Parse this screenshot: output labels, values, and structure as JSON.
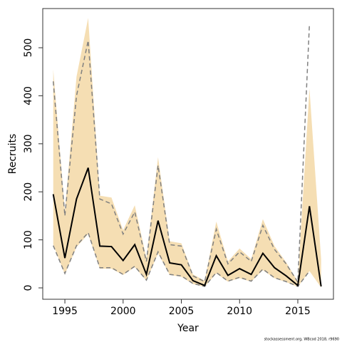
{
  "chart_data": {
    "type": "line",
    "x_label": "Year",
    "y_label": "Recruits",
    "footnote": "stockassessment.org, WBcod 2018, r9690",
    "x": [
      1994,
      1995,
      1996,
      1997,
      1998,
      1999,
      2000,
      2001,
      2002,
      2003,
      2004,
      2005,
      2006,
      2007,
      2008,
      2009,
      2010,
      2011,
      2012,
      2013,
      2014,
      2015,
      2016,
      2017
    ],
    "band": {
      "color": "#f5deb3",
      "upper": [
        455,
        160,
        440,
        562,
        192,
        188,
        120,
        172,
        62,
        272,
        97,
        93,
        28,
        15,
        138,
        55,
        82,
        60,
        143,
        87,
        53,
        13,
        415,
        60
      ],
      "lower": [
        90,
        28,
        85,
        112,
        40,
        40,
        27,
        43,
        15,
        72,
        27,
        23,
        8,
        2,
        30,
        13,
        20,
        13,
        37,
        20,
        12,
        2,
        35,
        1
      ]
    },
    "series": [
      {
        "color": "#808080",
        "dashed": true,
        "values": [
          430,
          150,
          400,
          515,
          185,
          175,
          112,
          158,
          55,
          255,
          90,
          87,
          25,
          13,
          122,
          50,
          75,
          55,
          130,
          80,
          50,
          12,
          550,
          null
        ]
      },
      {
        "color": "#808080",
        "dashed": true,
        "values": [
          88,
          30,
          88,
          115,
          42,
          42,
          28,
          45,
          16,
          75,
          28,
          25,
          9,
          3,
          32,
          14,
          22,
          14,
          39,
          21,
          13,
          3,
          35,
          null
        ]
      },
      {
        "color": "#000000",
        "dashed": false,
        "values": [
          195,
          62,
          185,
          250,
          87,
          86,
          57,
          90,
          28,
          140,
          52,
          48,
          15,
          5,
          67,
          26,
          40,
          28,
          72,
          42,
          25,
          5,
          170,
          3
        ]
      }
    ],
    "xlim": [
      1993.1,
      2018.06
    ],
    "ylim": [
      -23.7,
      581.6
    ],
    "xticks": [
      1995,
      2000,
      2005,
      2010,
      2015
    ],
    "yticks": [
      0,
      100,
      200,
      300,
      400,
      500
    ],
    "grid": false
  }
}
